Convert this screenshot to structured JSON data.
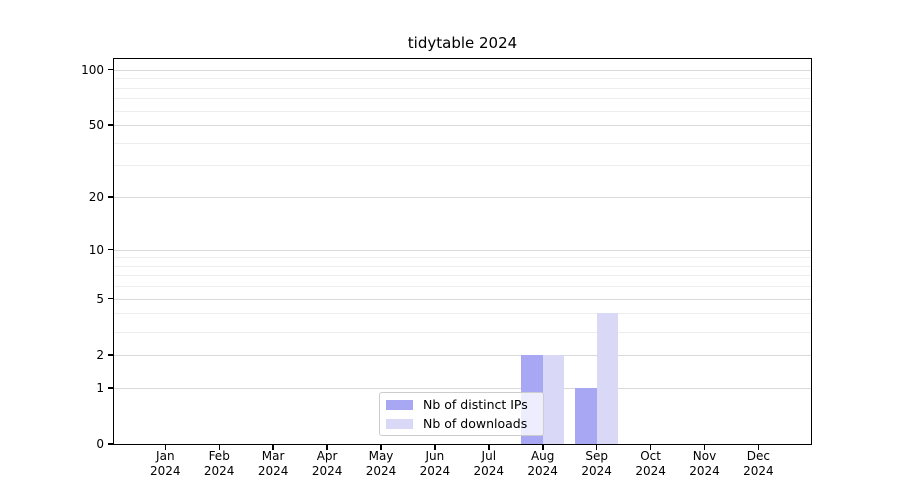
{
  "chart_data": {
    "type": "bar",
    "title": "tidytable 2024",
    "categories": [
      "Jan",
      "Feb",
      "Mar",
      "Apr",
      "May",
      "Jun",
      "Jul",
      "Aug",
      "Sep",
      "Oct",
      "Nov",
      "Dec"
    ],
    "category_sublabel": "2024",
    "series": [
      {
        "name": "Nb of distinct IPs",
        "color": "#a7a7f3",
        "values": [
          0,
          0,
          0,
          0,
          0,
          0,
          0,
          2,
          1,
          0,
          0,
          0
        ]
      },
      {
        "name": "Nb of downloads",
        "color": "#d9d9f7",
        "values": [
          0,
          0,
          0,
          0,
          0,
          0,
          0,
          2,
          4,
          0,
          0,
          0
        ]
      }
    ],
    "yticks": [
      0,
      1,
      2,
      5,
      10,
      20,
      50,
      100
    ],
    "minor_yticks": [
      3,
      4,
      6,
      7,
      8,
      9,
      30,
      40,
      60,
      70,
      80,
      90
    ],
    "yscale": "log10(1+x)",
    "ylim": [
      0,
      114
    ],
    "xlabel": "",
    "ylabel": "",
    "grid": true,
    "legend_position": "inside-bottom-center",
    "colors": {
      "major_grid": "#d9d9d9",
      "minor_grid": "#ededed",
      "axis": "#000000",
      "legend_border": "#cccccc",
      "legend_bg": "rgba(255,255,255,0.8)",
      "text": "#000000"
    }
  }
}
